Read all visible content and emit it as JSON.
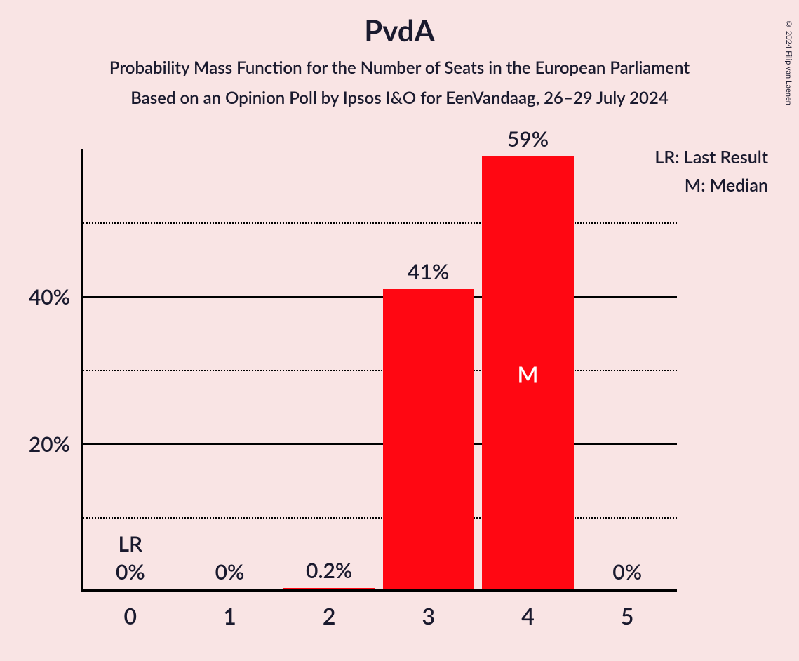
{
  "title": "PvdA",
  "subtitle1": "Probability Mass Function for the Number of Seats in the European Parliament",
  "subtitle2": "Based on an Opinion Poll by Ipsos I&O for EenVandaag, 26–29 July 2024",
  "copyright": "© 2024 Filip van Laenen",
  "chart": {
    "type": "bar",
    "background_color": "#f9e4e4",
    "bar_color": "#ff0712",
    "axis_color": "#000000",
    "text_color": "#1a1a2e",
    "marker_text_color": "#ffffff",
    "y_axis": {
      "min": 0,
      "max": 60,
      "major_ticks": [
        20,
        40
      ],
      "minor_ticks": [
        10,
        30,
        50
      ],
      "labels": {
        "tick_20": "20%",
        "tick_40": "40%"
      },
      "label_fontsize": 30
    },
    "x_axis": {
      "categories": [
        "0",
        "1",
        "2",
        "3",
        "4",
        "5"
      ],
      "label_fontsize": 32
    },
    "bars": [
      {
        "x": "0",
        "value": 0,
        "label": "0%",
        "extra_label": "LR"
      },
      {
        "x": "1",
        "value": 0,
        "label": "0%"
      },
      {
        "x": "2",
        "value": 0.2,
        "label": "0.2%"
      },
      {
        "x": "3",
        "value": 41,
        "label": "41%"
      },
      {
        "x": "4",
        "value": 59,
        "label": "59%",
        "marker": "M"
      },
      {
        "x": "5",
        "value": 0,
        "label": "0%"
      }
    ],
    "bar_width_ratio": 0.92,
    "value_label_fontsize": 30,
    "legend": {
      "lr": "LR: Last Result",
      "m": "M: Median",
      "fontsize": 25
    }
  }
}
